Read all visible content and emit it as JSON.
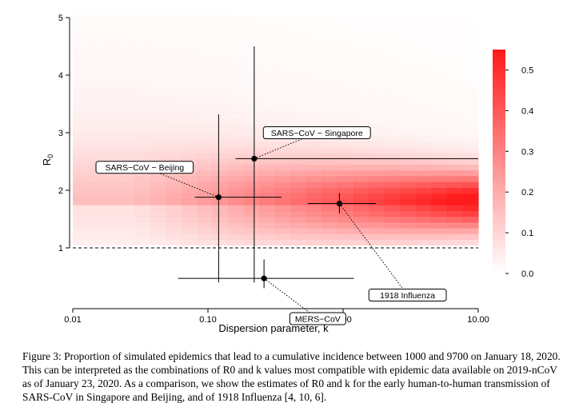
{
  "chart_data": {
    "type": "heatmap",
    "title": "",
    "xlabel": "Dispersion parameter, k",
    "ylabel": "R",
    "ylabel_subscript": "0",
    "x_scale": "log",
    "xlim": [
      0.01,
      10
    ],
    "ylim": [
      0,
      5
    ],
    "x_ticks": [
      0.01,
      0.1,
      1,
      10
    ],
    "x_tick_labels": [
      "0.01",
      "0.10",
      "1.00",
      "10.00"
    ],
    "y_ticks": [
      1,
      2,
      3,
      4,
      5
    ],
    "y_tick_labels": [
      "1",
      "2",
      "3",
      "4",
      "5"
    ],
    "reference_line": {
      "y": 1,
      "style": "dashed"
    },
    "colorbar": {
      "range": [
        0,
        0.55
      ],
      "ticks": [
        0.0,
        0.1,
        0.2,
        0.3,
        0.4,
        0.5
      ],
      "tick_labels": [
        "0.0",
        "0.1",
        "0.2",
        "0.3",
        "0.4",
        "0.5"
      ],
      "low_color": "#ffffff",
      "high_color": "#ff1a1a"
    },
    "heatmap_note": "proportion of simulated epidemics on a grid of k (log-spaced) × R0 (0.1 steps), peak region R0≈1.5–2.3 at high k",
    "points": [
      {
        "label": "SARS−CoV − Singapore",
        "k": 0.22,
        "r0": 2.55,
        "k_ci": [
          0.16,
          10.0
        ],
        "r0_ci": [
          0.4,
          4.5
        ]
      },
      {
        "label": "SARS−CoV − Beijing",
        "k": 0.12,
        "r0": 1.88,
        "k_ci": [
          0.08,
          0.35
        ],
        "r0_ci": [
          0.4,
          3.32
        ]
      },
      {
        "label": "1918 Influenza",
        "k": 0.94,
        "r0": 1.77,
        "k_ci": [
          0.55,
          1.75
        ],
        "r0_ci": [
          1.6,
          1.95
        ]
      },
      {
        "label": "MERS−CoV",
        "k": 0.26,
        "r0": 0.47,
        "k_ci": [
          0.06,
          1.2
        ],
        "r0_ci": [
          0.3,
          0.8
        ]
      }
    ]
  },
  "caption": "Figure 3: Proportion of simulated epidemics that lead to a cumulative incidence between 1000 and 9700 on January 18, 2020. This can be interpreted as the combinations of R0 and k values most compatible with epidemic data available on 2019-nCoV as of January 23, 2020. As a comparison, we show the estimates of R0 and k for the early human-to-human transmission of SARS-CoV in Singapore and Beijing, and of 1918 Influenza [4, 10, 6].",
  "colors": {
    "accent": "#ff1a1a",
    "axis": "#000000"
  }
}
